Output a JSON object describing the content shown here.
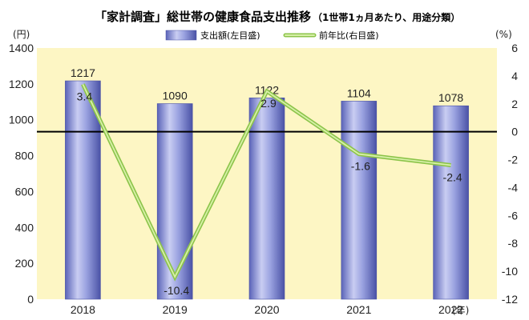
{
  "chart_data": {
    "type": "bar",
    "title": "「家計調査」総世帯の健康食品支出推移",
    "subtitle": "（1世帯1ヵ月あたり、用途分類）",
    "categories": [
      "2018",
      "2019",
      "2020",
      "2021",
      "2022"
    ],
    "x_unit": "(年)",
    "series": [
      {
        "name": "支出額(左目盛)",
        "type": "bar",
        "axis": "left",
        "values": [
          1217,
          1090,
          1122,
          1104,
          1078
        ],
        "color": "#8a93d6"
      },
      {
        "name": "前年比(右目盛)",
        "type": "line",
        "axis": "right",
        "values": [
          3.4,
          -10.4,
          2.9,
          -1.6,
          -2.4
        ],
        "color": "#a8d86a"
      }
    ],
    "left_axis": {
      "unit": "(円)",
      "ylim": [
        0,
        1400
      ],
      "ticks": [
        0,
        200,
        400,
        600,
        800,
        1000,
        1200,
        1400
      ]
    },
    "right_axis": {
      "unit": "(%)",
      "ylim": [
        -12,
        6
      ],
      "ticks": [
        6,
        4,
        2,
        0,
        -2,
        -4,
        -6,
        -8,
        -10,
        -12
      ]
    },
    "reference_line": {
      "axis": "right",
      "value": 0
    },
    "plot_background": "#fdf6c4",
    "legend_position": "top-center",
    "grid": false
  }
}
